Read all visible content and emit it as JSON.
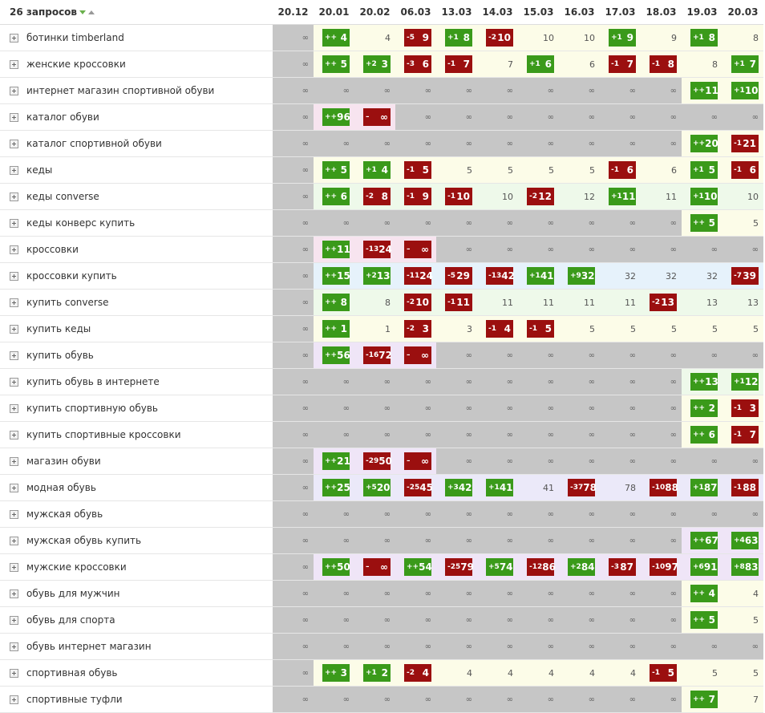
{
  "header": {
    "title": "26 запросов",
    "columns": [
      "20.12",
      "20.01",
      "20.02",
      "06.03",
      "13.03",
      "14.03",
      "15.03",
      "16.03",
      "17.03",
      "18.03",
      "19.03",
      "20.03"
    ]
  },
  "colors": {
    "up": "#3a9a1a",
    "down": "#9b0f0f",
    "empty": "#c6c6c6"
  },
  "rows": [
    {
      "query": "ботинки timberland",
      "tint": "#fcfce8",
      "cells": [
        "∞",
        {
          "change": "++",
          "value": 4
        },
        4,
        {
          "change": "-5",
          "value": 9
        },
        {
          "change": "+1",
          "value": 8
        },
        {
          "change": "-2",
          "value": 10
        },
        10,
        10,
        {
          "change": "+1",
          "value": 9
        },
        9,
        {
          "change": "+1",
          "value": 8
        },
        8
      ]
    },
    {
      "query": "женские кроссовки",
      "tint": "#fcfce8",
      "cells": [
        "∞",
        {
          "change": "++",
          "value": 5
        },
        {
          "change": "+2",
          "value": 3
        },
        {
          "change": "-3",
          "value": 6
        },
        {
          "change": "-1",
          "value": 7
        },
        7,
        {
          "change": "+1",
          "value": 6
        },
        6,
        {
          "change": "-1",
          "value": 7
        },
        {
          "change": "-1",
          "value": 8
        },
        8,
        {
          "change": "+1",
          "value": 7
        }
      ]
    },
    {
      "query": "интернет магазин спортивной обуви",
      "tint": "#fcfce8",
      "cells": [
        "∞",
        "∞",
        "∞",
        "∞",
        "∞",
        "∞",
        "∞",
        "∞",
        "∞",
        "∞",
        {
          "change": "++",
          "value": 11
        },
        {
          "change": "+1",
          "value": 10
        }
      ]
    },
    {
      "query": "каталог обуви",
      "tint": "#f7e4ef",
      "cells": [
        "∞",
        {
          "change": "++",
          "value": 96
        },
        {
          "change": "–",
          "value": "∞"
        },
        "∞",
        "∞",
        "∞",
        "∞",
        "∞",
        "∞",
        "∞",
        "∞",
        "∞"
      ]
    },
    {
      "query": "каталог спортивной обуви",
      "tint": "#fcfce8",
      "cells": [
        "∞",
        "∞",
        "∞",
        "∞",
        "∞",
        "∞",
        "∞",
        "∞",
        "∞",
        "∞",
        {
          "change": "++",
          "value": 20
        },
        {
          "change": "-1",
          "value": 21
        }
      ]
    },
    {
      "query": "кеды",
      "tint": "#fcfce8",
      "cells": [
        "∞",
        {
          "change": "++",
          "value": 5
        },
        {
          "change": "+1",
          "value": 4
        },
        {
          "change": "-1",
          "value": 5
        },
        5,
        5,
        5,
        5,
        {
          "change": "-1",
          "value": 6
        },
        6,
        {
          "change": "+1",
          "value": 5
        },
        {
          "change": "-1",
          "value": 6
        }
      ]
    },
    {
      "query": "кеды converse",
      "tint": "#eef9ea",
      "cells": [
        "∞",
        {
          "change": "++",
          "value": 6
        },
        {
          "change": "-2",
          "value": 8
        },
        {
          "change": "-1",
          "value": 9
        },
        {
          "change": "-1",
          "value": 10
        },
        10,
        {
          "change": "-2",
          "value": 12
        },
        12,
        {
          "change": "+1",
          "value": 11
        },
        11,
        {
          "change": "+1",
          "value": 10
        },
        10
      ]
    },
    {
      "query": "кеды конверс купить",
      "tint": "#fcfce8",
      "cells": [
        "∞",
        "∞",
        "∞",
        "∞",
        "∞",
        "∞",
        "∞",
        "∞",
        "∞",
        "∞",
        {
          "change": "++",
          "value": 5
        },
        5
      ]
    },
    {
      "query": "кроссовки",
      "tint": "#f7e4ef",
      "cells": [
        "∞",
        {
          "change": "++",
          "value": 11
        },
        {
          "change": "-13",
          "value": 24
        },
        {
          "change": "–",
          "value": "∞"
        },
        "∞",
        "∞",
        "∞",
        "∞",
        "∞",
        "∞",
        "∞",
        "∞"
      ]
    },
    {
      "query": "кроссовки купить",
      "tint": "#e6f2fb",
      "cells": [
        "∞",
        {
          "change": "++",
          "value": 15
        },
        {
          "change": "+2",
          "value": 13
        },
        {
          "change": "-11",
          "value": 24
        },
        {
          "change": "-5",
          "value": 29
        },
        {
          "change": "-13",
          "value": 42
        },
        {
          "change": "+1",
          "value": 41
        },
        {
          "change": "+9",
          "value": 32
        },
        32,
        32,
        32,
        {
          "change": "-7",
          "value": 39
        }
      ]
    },
    {
      "query": "купить converse",
      "tint": "#eef9ea",
      "cells": [
        "∞",
        {
          "change": "++",
          "value": 8
        },
        8,
        {
          "change": "-2",
          "value": 10
        },
        {
          "change": "-1",
          "value": 11
        },
        11,
        11,
        11,
        11,
        {
          "change": "-2",
          "value": 13
        },
        13,
        13
      ]
    },
    {
      "query": "купить кеды",
      "tint": "#fcfce8",
      "cells": [
        "∞",
        {
          "change": "++",
          "value": 1
        },
        1,
        {
          "change": "-2",
          "value": 3
        },
        3,
        {
          "change": "-1",
          "value": 4
        },
        {
          "change": "-1",
          "value": 5
        },
        5,
        5,
        5,
        5,
        5
      ]
    },
    {
      "query": "купить обувь",
      "tint": "#efe5f7",
      "cells": [
        "∞",
        {
          "change": "++",
          "value": 56
        },
        {
          "change": "-16",
          "value": 72
        },
        {
          "change": "–",
          "value": "∞"
        },
        "∞",
        "∞",
        "∞",
        "∞",
        "∞",
        "∞",
        "∞",
        "∞"
      ]
    },
    {
      "query": "купить обувь в интернете",
      "tint": "#eef9ea",
      "cells": [
        "∞",
        "∞",
        "∞",
        "∞",
        "∞",
        "∞",
        "∞",
        "∞",
        "∞",
        "∞",
        {
          "change": "++",
          "value": 13
        },
        {
          "change": "+1",
          "value": 12
        }
      ]
    },
    {
      "query": "купить спортивную обувь",
      "tint": "#fcfce8",
      "cells": [
        "∞",
        "∞",
        "∞",
        "∞",
        "∞",
        "∞",
        "∞",
        "∞",
        "∞",
        "∞",
        {
          "change": "++",
          "value": 2
        },
        {
          "change": "-1",
          "value": 3
        }
      ]
    },
    {
      "query": "купить спортивные кроссовки",
      "tint": "#fcfce8",
      "cells": [
        "∞",
        "∞",
        "∞",
        "∞",
        "∞",
        "∞",
        "∞",
        "∞",
        "∞",
        "∞",
        {
          "change": "++",
          "value": 6
        },
        {
          "change": "-1",
          "value": 7
        }
      ]
    },
    {
      "query": "магазин обуви",
      "tint": "#efe5f7",
      "cells": [
        "∞",
        {
          "change": "++",
          "value": 21
        },
        {
          "change": "-29",
          "value": 50
        },
        {
          "change": "–",
          "value": "∞"
        },
        "∞",
        "∞",
        "∞",
        "∞",
        "∞",
        "∞",
        "∞",
        "∞"
      ]
    },
    {
      "query": "модная обувь",
      "tint": "#ebe9f9",
      "cells": [
        "∞",
        {
          "change": "++",
          "value": 25
        },
        {
          "change": "+5",
          "value": 20
        },
        {
          "change": "-25",
          "value": 45
        },
        {
          "change": "+3",
          "value": 42
        },
        {
          "change": "+1",
          "value": 41
        },
        41,
        {
          "change": "-37",
          "value": 78
        },
        78,
        {
          "change": "-10",
          "value": 88
        },
        {
          "change": "+1",
          "value": 87
        },
        {
          "change": "-1",
          "value": 88
        }
      ]
    },
    {
      "query": "мужская обувь",
      "cells": [
        "∞",
        "∞",
        "∞",
        "∞",
        "∞",
        "∞",
        "∞",
        "∞",
        "∞",
        "∞",
        "∞",
        "∞"
      ]
    },
    {
      "query": "мужская обувь купить",
      "tint": "#efe5f7",
      "cells": [
        "∞",
        "∞",
        "∞",
        "∞",
        "∞",
        "∞",
        "∞",
        "∞",
        "∞",
        "∞",
        {
          "change": "++",
          "value": 67
        },
        {
          "change": "+4",
          "value": 63
        }
      ]
    },
    {
      "query": "мужские кроссовки",
      "tint": "#efe5f7",
      "cells": [
        "∞",
        {
          "change": "++",
          "value": 50
        },
        {
          "change": "–",
          "value": "∞"
        },
        {
          "change": "++",
          "value": 54
        },
        {
          "change": "-25",
          "value": 79
        },
        {
          "change": "+5",
          "value": 74
        },
        {
          "change": "-12",
          "value": 86
        },
        {
          "change": "+2",
          "value": 84
        },
        {
          "change": "-3",
          "value": 87
        },
        {
          "change": "-10",
          "value": 97
        },
        {
          "change": "+6",
          "value": 91
        },
        {
          "change": "+8",
          "value": 83
        }
      ]
    },
    {
      "query": "обувь для мужчин",
      "tint": "#fcfce8",
      "cells": [
        "∞",
        "∞",
        "∞",
        "∞",
        "∞",
        "∞",
        "∞",
        "∞",
        "∞",
        "∞",
        {
          "change": "++",
          "value": 4
        },
        4
      ]
    },
    {
      "query": "обувь для спорта",
      "tint": "#fcfce8",
      "cells": [
        "∞",
        "∞",
        "∞",
        "∞",
        "∞",
        "∞",
        "∞",
        "∞",
        "∞",
        "∞",
        {
          "change": "++",
          "value": 5
        },
        5
      ]
    },
    {
      "query": "обувь интернет магазин",
      "cells": [
        "∞",
        "∞",
        "∞",
        "∞",
        "∞",
        "∞",
        "∞",
        "∞",
        "∞",
        "∞",
        "∞",
        "∞"
      ]
    },
    {
      "query": "спортивная обувь",
      "tint": "#fcfce8",
      "cells": [
        "∞",
        {
          "change": "++",
          "value": 3
        },
        {
          "change": "+1",
          "value": 2
        },
        {
          "change": "-2",
          "value": 4
        },
        4,
        4,
        4,
        4,
        4,
        {
          "change": "-1",
          "value": 5
        },
        5,
        5
      ]
    },
    {
      "query": "спортивные туфли",
      "tint": "#fcfce8",
      "cells": [
        "∞",
        "∞",
        "∞",
        "∞",
        "∞",
        "∞",
        "∞",
        "∞",
        "∞",
        "∞",
        {
          "change": "++",
          "value": 7
        },
        7
      ]
    }
  ]
}
